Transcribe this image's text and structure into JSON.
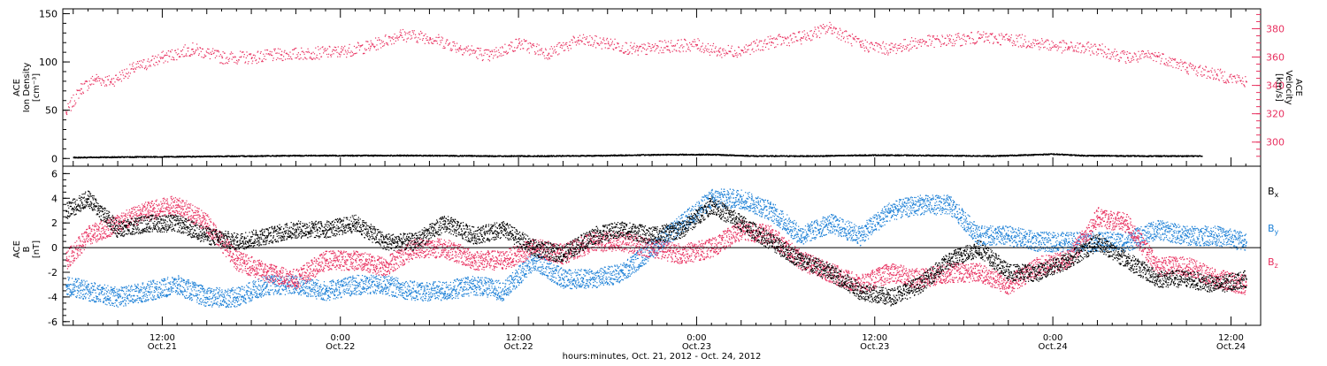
{
  "colors": {
    "black": "#000000",
    "pink": "#e8305f",
    "blue": "#1b7fd6"
  },
  "x_axis": {
    "label": "hours:minutes, Oct. 21, 2012 - Oct. 24, 2012",
    "tick_labels": [
      {
        "time": "12:00",
        "date": "Oct.21"
      },
      {
        "time": "0:00",
        "date": "Oct.22"
      },
      {
        "time": "12:00",
        "date": "Oct.22"
      },
      {
        "time": "0:00",
        "date": "Oct.23"
      },
      {
        "time": "12:00",
        "date": "Oct.23"
      },
      {
        "time": "0:00",
        "date": "Oct.24"
      },
      {
        "time": "12:00",
        "date": "Oct.24"
      }
    ]
  },
  "chart_data": [
    {
      "type": "scatter",
      "x_unit": "hours since 2012-10-21 00:00",
      "xlim": [
        5.3,
        86.0
      ],
      "y_left": {
        "label_lines": [
          "ACE",
          "Ion Density",
          "[cm⁻³]"
        ],
        "ticks": [
          0,
          50,
          100,
          150
        ],
        "ylim": [
          -8,
          155
        ]
      },
      "y_right": {
        "label_lines": [
          "ACE",
          "Velocity",
          "[km/s]"
        ],
        "ticks": [
          300,
          320,
          340,
          360,
          380
        ],
        "ylim": [
          283,
          394
        ]
      },
      "grid": false,
      "series": [
        {
          "axis": "left",
          "color": "black",
          "x": [
            6,
            10,
            14,
            18,
            22,
            26,
            30,
            34,
            38,
            42,
            46,
            49,
            52,
            56,
            60,
            64,
            68,
            72,
            74,
            78,
            82
          ],
          "y": [
            1.5,
            2.0,
            2.5,
            3.0,
            3.5,
            3.5,
            3.5,
            3.0,
            3.0,
            3.5,
            4.5,
            4.5,
            3.0,
            3.0,
            4.0,
            3.5,
            3.0,
            5.0,
            3.5,
            3.0,
            3.0
          ]
        },
        {
          "axis": "right",
          "color": "pink",
          "x": [
            5.5,
            6.5,
            7.5,
            8.5,
            10,
            12,
            14,
            16,
            18,
            20,
            22,
            24,
            26,
            28,
            30,
            32,
            34,
            36,
            38,
            40,
            42,
            44,
            46,
            48,
            49.5,
            51,
            53,
            55,
            57,
            59,
            61,
            63,
            65,
            67,
            69,
            71,
            73,
            75,
            77,
            79,
            81,
            83,
            85
          ],
          "y": [
            321,
            338,
            345,
            343,
            352,
            360,
            366,
            360,
            360,
            362,
            363,
            364,
            368,
            376,
            374,
            367,
            361,
            370,
            363,
            372,
            370,
            365,
            368,
            369,
            364,
            365,
            371,
            374,
            381,
            369,
            366,
            371,
            372,
            374,
            373,
            370,
            367,
            366,
            360,
            361,
            353,
            348,
            343
          ]
        }
      ]
    },
    {
      "type": "scatter",
      "x_unit": "hours since 2012-10-21 00:00",
      "xlim": [
        5.3,
        86.0
      ],
      "y_left": {
        "label_lines": [
          "ACE",
          "B",
          "[nT]"
        ],
        "ticks": [
          -6,
          -4,
          -2,
          0,
          2,
          4,
          6
        ],
        "ylim": [
          -6.3,
          6.6
        ]
      },
      "legend": {
        "position": "right",
        "entries": [
          {
            "text": "B",
            "sub": "x",
            "color": "black"
          },
          {
            "text": "B",
            "sub": "y",
            "color": "blue"
          },
          {
            "text": "B",
            "sub": "z",
            "color": "pink"
          }
        ]
      },
      "grid": false,
      "series": [
        {
          "name": "Bx",
          "color": "black",
          "x": [
            5.5,
            7,
            9,
            11,
            13,
            15,
            17,
            19,
            21,
            23,
            25,
            27,
            29,
            31,
            33,
            35,
            37,
            39,
            41,
            43,
            45,
            47,
            49,
            51,
            53,
            55,
            57,
            59,
            61,
            63,
            65,
            67,
            69,
            71,
            73,
            75,
            77,
            79,
            81,
            83,
            85
          ],
          "y": [
            3,
            4,
            1.5,
            2,
            2,
            1,
            0.5,
            1,
            1.5,
            1.5,
            2,
            0.5,
            0.5,
            2,
            1,
            1.5,
            0,
            -0.5,
            1,
            1.5,
            1,
            1.5,
            3.5,
            2,
            0.5,
            -1,
            -2,
            -3.5,
            -4,
            -3,
            -1,
            0,
            -2,
            -2,
            -1,
            0.5,
            -1,
            -2.5,
            -2.5,
            -3,
            -2.5
          ]
        },
        {
          "name": "By",
          "color": "blue",
          "x": [
            5.5,
            7,
            9,
            11,
            13,
            15,
            17,
            19,
            21,
            23,
            25,
            27,
            29,
            31,
            33,
            35,
            37,
            39,
            41,
            43,
            45,
            47,
            49,
            51,
            53,
            55,
            57,
            59,
            61,
            63,
            65,
            67,
            69,
            71,
            73,
            75,
            77,
            79,
            81,
            83,
            85
          ],
          "y": [
            -3,
            -3.5,
            -4,
            -3.5,
            -3,
            -4,
            -4,
            -3,
            -3,
            -3.5,
            -3,
            -3,
            -3.5,
            -3.5,
            -3,
            -3.5,
            -1,
            -2.5,
            -2.5,
            -2,
            0,
            2,
            4,
            4,
            3,
            1,
            2,
            1,
            3,
            3.5,
            3.5,
            1,
            1,
            0.5,
            0.5,
            0.5,
            0.5,
            1.5,
            1,
            1,
            0.5
          ]
        },
        {
          "name": "Bz",
          "color": "pink",
          "x": [
            5.5,
            7,
            9,
            11,
            13,
            15,
            17,
            19,
            21,
            23,
            25,
            27,
            29,
            31,
            33,
            35,
            37,
            39,
            41,
            43,
            45,
            47,
            49,
            51,
            53,
            55,
            57,
            59,
            61,
            63,
            65,
            67,
            69,
            71,
            73,
            75,
            77,
            79,
            81,
            83,
            85
          ],
          "y": [
            -1,
            1,
            2,
            3,
            3.5,
            2,
            -1,
            -2,
            -2.5,
            -1,
            -1,
            -1.5,
            0,
            0,
            -1,
            -1,
            0,
            -0.5,
            0.5,
            0.5,
            0,
            -0.5,
            0,
            1.5,
            1,
            -1,
            -2,
            -3,
            -2,
            -2.5,
            -2,
            -2,
            -3,
            -1.5,
            -1,
            2.5,
            2,
            -1.5,
            -1.5,
            -2.5,
            -3
          ]
        }
      ]
    }
  ]
}
